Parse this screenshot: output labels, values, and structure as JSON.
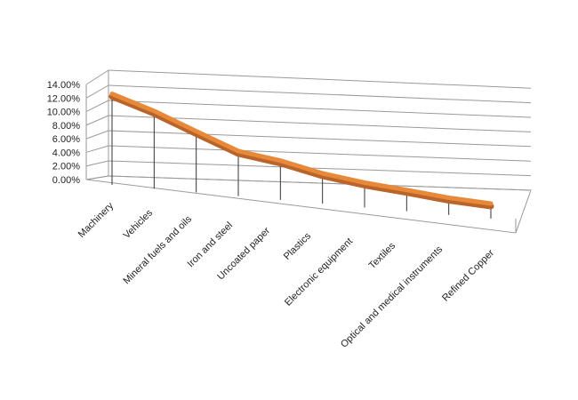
{
  "chart_data": {
    "type": "line",
    "title": "",
    "xlabel": "",
    "ylabel": "",
    "categories": [
      "Machinery",
      "Vehicles",
      "Mineral fuels and oils",
      "Iron and steel",
      "Uncoated paper",
      "Plastics",
      "Electronic equipment",
      "Textiles",
      "Optical and medical instruments",
      "Refined Copper"
    ],
    "values": [
      0.125,
      0.105,
      0.08,
      0.055,
      0.045,
      0.03,
      0.02,
      0.013,
      0.005,
      0.0
    ],
    "ylim": [
      0,
      0.14
    ],
    "yticks": [
      0.0,
      0.02,
      0.04,
      0.06,
      0.08,
      0.1,
      0.12,
      0.14
    ],
    "ytick_labels": [
      "0.00%",
      "2.00%",
      "4.00%",
      "6.00%",
      "8.00%",
      "10.00%",
      "12.00%",
      "14.00%"
    ],
    "grid": true,
    "legend": "none",
    "style": "3d-perspective",
    "colors": {
      "line": "#E8893A",
      "line_edge": "#B8642A",
      "grid": "#9a9a9a",
      "drop_line": "#333333"
    }
  }
}
